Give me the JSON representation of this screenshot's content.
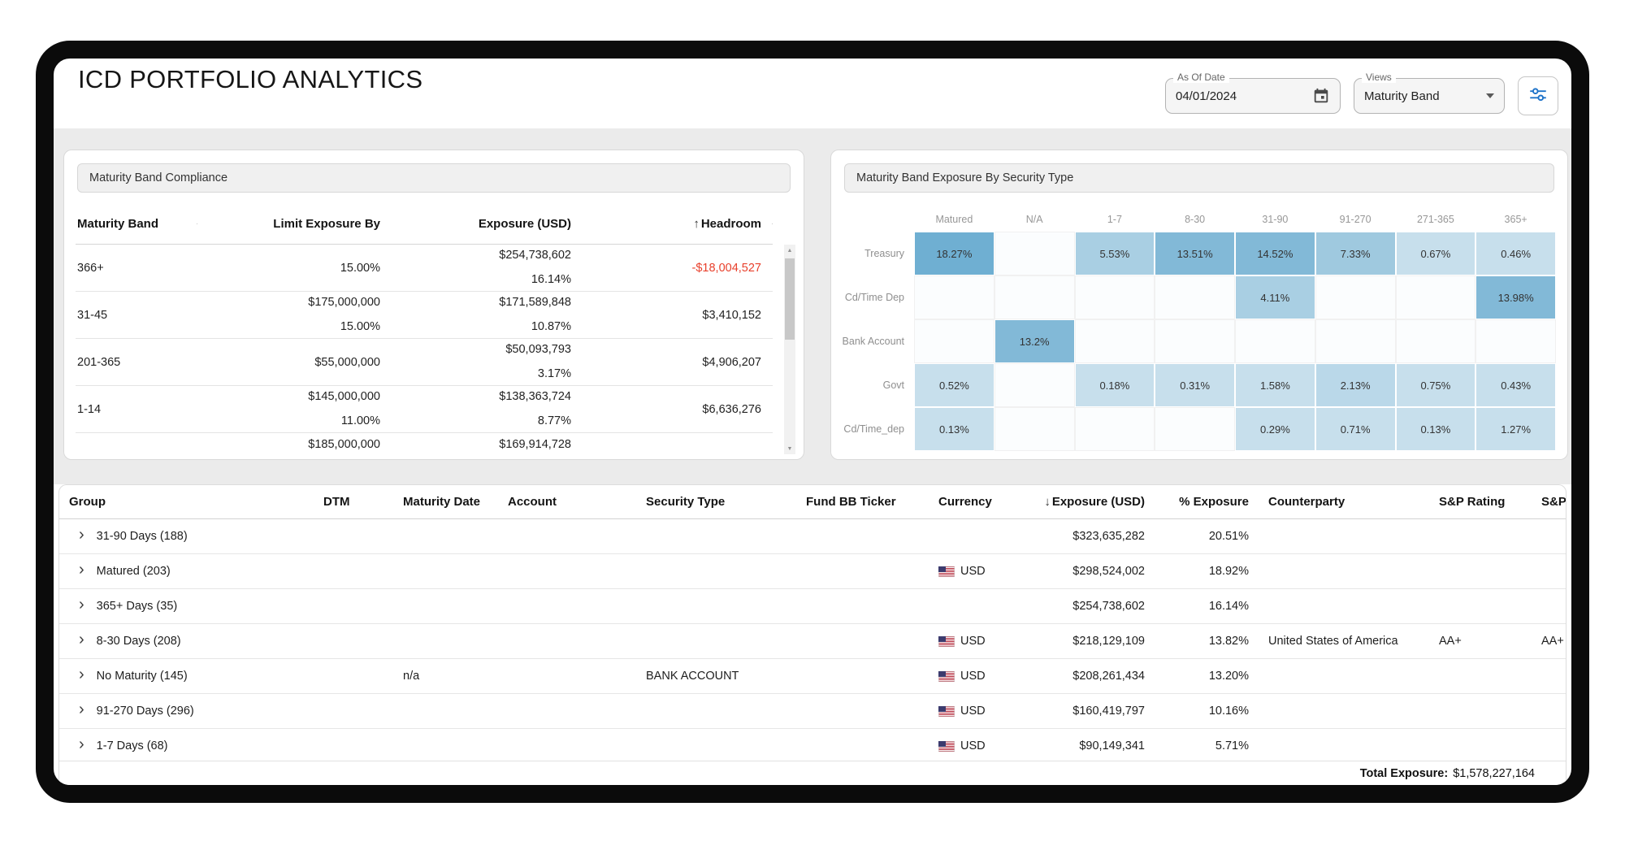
{
  "app": {
    "title": "ICD PORTFOLIO ANALYTICS"
  },
  "toolbar": {
    "as_of_date": {
      "label": "As Of Date",
      "value": "04/01/2024"
    },
    "views": {
      "label": "Views",
      "selected": "Maturity Band"
    }
  },
  "compliance_panel": {
    "title": "Maturity Band Compliance",
    "columns": [
      {
        "label": "Maturity Band",
        "align": "left",
        "sort": ""
      },
      {
        "label": "Limit Exposure By",
        "align": "right",
        "sort": ""
      },
      {
        "label": "Exposure (USD)",
        "align": "right",
        "sort": ""
      },
      {
        "label": "Headroom",
        "align": "right",
        "sort": "asc"
      }
    ],
    "rows": [
      {
        "band": "366+",
        "limit_amount": "",
        "limit_pct": "15.00%",
        "exposure_amount": "$254,738,602",
        "exposure_pct": "16.14%",
        "headroom": "-$18,004,527",
        "headroom_negative": true,
        "partial": false
      },
      {
        "band": "31-45",
        "limit_amount": "$175,000,000",
        "limit_pct": "15.00%",
        "exposure_amount": "$171,589,848",
        "exposure_pct": "10.87%",
        "headroom": "$3,410,152",
        "headroom_negative": false,
        "partial": false
      },
      {
        "band": "201-365",
        "limit_amount": "$55,000,000",
        "limit_pct": "",
        "exposure_amount": "$50,093,793",
        "exposure_pct": "3.17%",
        "headroom": "$4,906,207",
        "headroom_negative": false,
        "partial": false
      },
      {
        "band": "1-14",
        "limit_amount": "$145,000,000",
        "limit_pct": "11.00%",
        "exposure_amount": "$138,363,724",
        "exposure_pct": "8.77%",
        "headroom": "$6,636,276",
        "headroom_negative": false,
        "partial": false
      },
      {
        "band": "",
        "limit_amount": "$185,000,000",
        "limit_pct": "",
        "exposure_amount": "$169,914,728",
        "exposure_pct": "",
        "headroom": "",
        "headroom_negative": false,
        "partial": true
      }
    ]
  },
  "heatmap_panel": {
    "title": "Maturity Band Exposure By Security Type"
  },
  "chart_data": {
    "type": "heatmap",
    "title": "Maturity Band Exposure By Security Type",
    "columns": [
      "Matured",
      "N/A",
      "1-7",
      "8-30",
      "31-90",
      "91-270",
      "271-365",
      "365+"
    ],
    "rows": [
      "Treasury",
      "Cd/Time Dep",
      "Bank Account",
      "Govt",
      "Cd/Time_dep"
    ],
    "values_pct": [
      [
        18.27,
        null,
        5.53,
        13.51,
        14.52,
        7.33,
        0.67,
        0.46
      ],
      [
        null,
        null,
        null,
        null,
        4.11,
        null,
        null,
        13.98
      ],
      [
        null,
        13.2,
        null,
        null,
        null,
        null,
        null,
        null
      ],
      [
        0.52,
        null,
        0.18,
        0.31,
        1.58,
        2.13,
        0.75,
        0.43
      ],
      [
        0.13,
        null,
        null,
        null,
        0.29,
        0.71,
        0.13,
        1.27
      ]
    ],
    "unit": "%",
    "color_scale": {
      "low": "#c7dfec",
      "high": "#6fafd2"
    }
  },
  "main_table": {
    "columns": [
      {
        "label": "Group",
        "align": "left",
        "sort": ""
      },
      {
        "label": "DTM",
        "align": "left",
        "sort": ""
      },
      {
        "label": "Maturity Date",
        "align": "left",
        "sort": ""
      },
      {
        "label": "Account",
        "align": "left",
        "sort": ""
      },
      {
        "label": "Security Type",
        "align": "left",
        "sort": ""
      },
      {
        "label": "Fund BB Ticker",
        "align": "left",
        "sort": ""
      },
      {
        "label": "Currency",
        "align": "left",
        "sort": ""
      },
      {
        "label": "Exposure (USD)",
        "align": "right",
        "sort": "desc"
      },
      {
        "label": "% Exposure",
        "align": "right",
        "sort": ""
      },
      {
        "label": "Counterparty",
        "align": "left",
        "sort": ""
      },
      {
        "label": "S&P Rating",
        "align": "left",
        "sort": ""
      },
      {
        "label": "S&P I",
        "align": "left",
        "sort": ""
      }
    ],
    "rows": [
      {
        "group": "31-90 Days (188)",
        "dtm": "",
        "maturity_date": "",
        "account": "",
        "security_type": "",
        "fund_bb_ticker": "",
        "currency": "",
        "exposure": "$323,635,282",
        "pct_exposure": "20.51%",
        "counterparty": "",
        "sp_rating": "",
        "sp_col2": ""
      },
      {
        "group": "Matured (203)",
        "dtm": "",
        "maturity_date": "",
        "account": "",
        "security_type": "",
        "fund_bb_ticker": "",
        "currency": "USD",
        "exposure": "$298,524,002",
        "pct_exposure": "18.92%",
        "counterparty": "",
        "sp_rating": "",
        "sp_col2": ""
      },
      {
        "group": "365+ Days (35)",
        "dtm": "",
        "maturity_date": "",
        "account": "",
        "security_type": "",
        "fund_bb_ticker": "",
        "currency": "",
        "exposure": "$254,738,602",
        "pct_exposure": "16.14%",
        "counterparty": "",
        "sp_rating": "",
        "sp_col2": ""
      },
      {
        "group": "8-30 Days (208)",
        "dtm": "",
        "maturity_date": "",
        "account": "",
        "security_type": "",
        "fund_bb_ticker": "",
        "currency": "USD",
        "exposure": "$218,129,109",
        "pct_exposure": "13.82%",
        "counterparty": "United States of America",
        "sp_rating": "AA+",
        "sp_col2": "AA+"
      },
      {
        "group": "No Maturity (145)",
        "dtm": "",
        "maturity_date": "n/a",
        "account": "",
        "security_type": "BANK ACCOUNT",
        "fund_bb_ticker": "",
        "currency": "USD",
        "exposure": "$208,261,434",
        "pct_exposure": "13.20%",
        "counterparty": "",
        "sp_rating": "",
        "sp_col2": ""
      },
      {
        "group": "91-270 Days (296)",
        "dtm": "",
        "maturity_date": "",
        "account": "",
        "security_type": "",
        "fund_bb_ticker": "",
        "currency": "USD",
        "exposure": "$160,419,797",
        "pct_exposure": "10.16%",
        "counterparty": "",
        "sp_rating": "",
        "sp_col2": ""
      },
      {
        "group": "1-7 Days (68)",
        "dtm": "",
        "maturity_date": "",
        "account": "",
        "security_type": "",
        "fund_bb_ticker": "",
        "currency": "USD",
        "exposure": "$90,149,341",
        "pct_exposure": "5.71%",
        "counterparty": "",
        "sp_rating": "",
        "sp_col2": ""
      }
    ]
  },
  "footer": {
    "total_label": "Total Exposure:",
    "total_value": "$1,578,227,164"
  }
}
